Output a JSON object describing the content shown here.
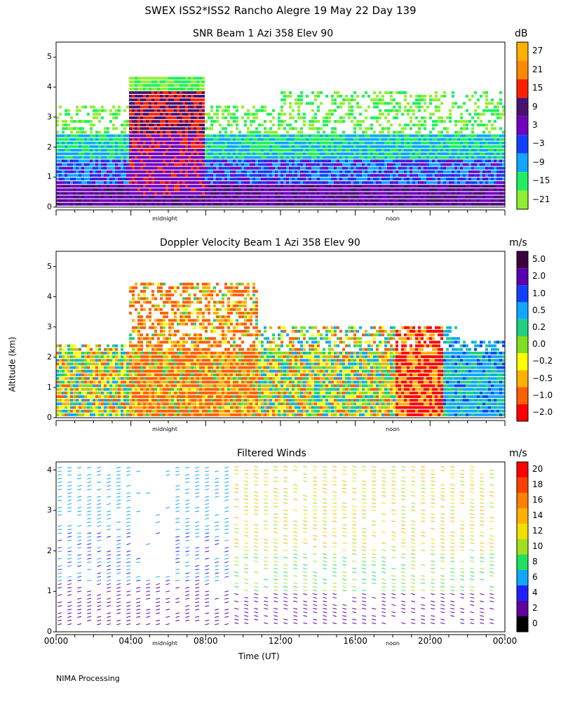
{
  "header": {
    "title": "SWEX ISS2*ISS2 Rancho Alegre  19 May 22 Day 139"
  },
  "panels": {
    "snr": {
      "title": "SNR Beam 1 Azi 358 Elev 90",
      "unit": "dB",
      "yticks": [
        "5",
        "4",
        "3",
        "2",
        "1",
        "0"
      ],
      "colorbar_labels": [
        "27",
        "21",
        "15",
        "9",
        "3",
        "−3",
        "−9",
        "−15",
        "−21"
      ],
      "markers": [
        "midnight",
        "noon"
      ]
    },
    "velocity": {
      "title": "Doppler Velocity Beam 1 Azi 358 Elev 90",
      "unit": "m/s",
      "yticks": [
        "5",
        "4",
        "3",
        "2",
        "1",
        "0"
      ],
      "colorbar_labels": [
        "5.0",
        "2.0",
        "1.0",
        "0.5",
        "0.2",
        "0.0",
        "−0.2",
        "−0.5",
        "−1.0",
        "−2.0"
      ],
      "markers": [
        "midnight",
        "noon"
      ]
    },
    "winds": {
      "title": "Filtered Winds",
      "unit": "m/s",
      "yticks": [
        "4",
        "3",
        "2",
        "1",
        "0"
      ],
      "colorbar_labels": [
        "20",
        "18",
        "16",
        "14",
        "12",
        "10",
        "8",
        "6",
        "4",
        "2",
        "0"
      ],
      "markers": [
        "midnight",
        "noon"
      ]
    }
  },
  "axes": {
    "ylabel": "Altitude (km)",
    "xlabel": "Time (UT)",
    "xticks": [
      "00:00",
      "04:00",
      "08:00",
      "12:00",
      "16:00",
      "20:00",
      "00:00"
    ]
  },
  "footer": "NIMA Processing",
  "colors": {
    "snr_scale": [
      "#ffb000",
      "#ff8a00",
      "#ff2000",
      "#4a1070",
      "#7000c0",
      "#1040ff",
      "#10a8ff",
      "#20f060",
      "#90f030"
    ],
    "velocity_scale": [
      "#3a0040",
      "#5a00b0",
      "#1040ff",
      "#10a8ff",
      "#20d080",
      "#80e020",
      "#ffff00",
      "#ffb000",
      "#ff6000",
      "#ff0000"
    ],
    "wind_scale": [
      "#ff0000",
      "#ff4000",
      "#ff8000",
      "#ffb000",
      "#f0e000",
      "#a0e020",
      "#20e060",
      "#10a8ff",
      "#2020ff",
      "#6000a0",
      "#000000"
    ]
  },
  "chart_data": [
    {
      "type": "heatmap",
      "title": "SNR Beam 1 Azi 358 Elev 90",
      "ylabel": "Altitude (km)",
      "ylim": [
        0,
        5.5
      ],
      "yticks": [
        0,
        1,
        2,
        3,
        4,
        5
      ],
      "colorbar": {
        "unit": "dB",
        "levels": [
          27,
          21,
          15,
          9,
          3,
          -3,
          -9,
          -15,
          -21
        ]
      },
      "x_markers": [
        "midnight",
        "noon"
      ]
    },
    {
      "type": "heatmap",
      "title": "Doppler Velocity Beam 1 Azi 358 Elev 90",
      "ylabel": "Altitude (km)",
      "ylim": [
        0,
        5.5
      ],
      "yticks": [
        0,
        1,
        2,
        3,
        4,
        5
      ],
      "colorbar": {
        "unit": "m/s",
        "levels": [
          5.0,
          2.0,
          1.0,
          0.5,
          0.2,
          0.0,
          -0.2,
          -0.5,
          -1.0,
          -2.0
        ]
      },
      "x_markers": [
        "midnight",
        "noon"
      ]
    },
    {
      "type": "scatter",
      "title": "Filtered Winds",
      "xlabel": "Time (UT)",
      "ylabel": "Altitude (km)",
      "ylim": [
        0,
        4.2
      ],
      "yticks": [
        0,
        1,
        2,
        3,
        4
      ],
      "xticks": [
        "00:00",
        "04:00",
        "08:00",
        "12:00",
        "16:00",
        "20:00",
        "00:00"
      ],
      "colorbar": {
        "unit": "m/s",
        "levels": [
          20,
          18,
          16,
          14,
          12,
          10,
          8,
          6,
          4,
          2,
          0
        ]
      },
      "x_markers": [
        "midnight",
        "noon"
      ]
    }
  ]
}
